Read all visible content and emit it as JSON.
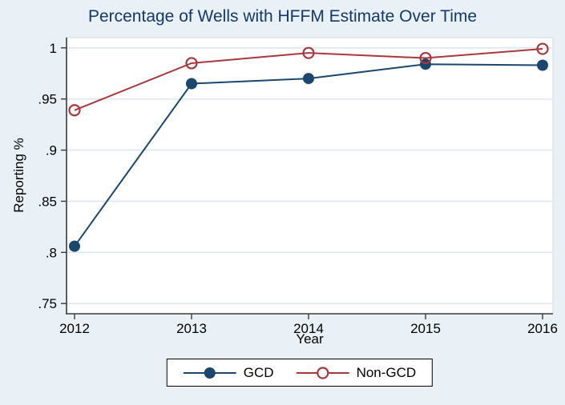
{
  "page": {
    "background": "#e9f1f6",
    "plot_background": "#ffffff"
  },
  "chart_data": {
    "type": "line",
    "title": "Percentage of Wells with HFFM Estimate Over Time",
    "xlabel": "Year",
    "ylabel": "Reporting %",
    "x": [
      2012,
      2013,
      2014,
      2015,
      2016
    ],
    "x_tick_labels": [
      "2012",
      "2013",
      "2014",
      "2015",
      "2016"
    ],
    "y_ticks": [
      1,
      0.95,
      0.9,
      0.85,
      0.8,
      0.75
    ],
    "y_tick_labels": [
      "1",
      ".95",
      ".9",
      ".85",
      ".8",
      ".75"
    ],
    "ylim": [
      0.74,
      1.01
    ],
    "grid": "horizontal",
    "legend_position": "bottom",
    "series": [
      {
        "name": "GCD",
        "color": "#1a476f",
        "marker": "filled-circle",
        "values": [
          0.806,
          0.965,
          0.97,
          0.984,
          0.983
        ]
      },
      {
        "name": "Non-GCD",
        "color": "#a8383c",
        "marker": "open-circle",
        "values": [
          0.939,
          0.985,
          0.995,
          0.99,
          0.999
        ]
      }
    ],
    "colors": {
      "title": "#13386b",
      "axis": "#3a3a3a",
      "gridline": "#dce8f1",
      "tick_text": "#000000"
    }
  }
}
